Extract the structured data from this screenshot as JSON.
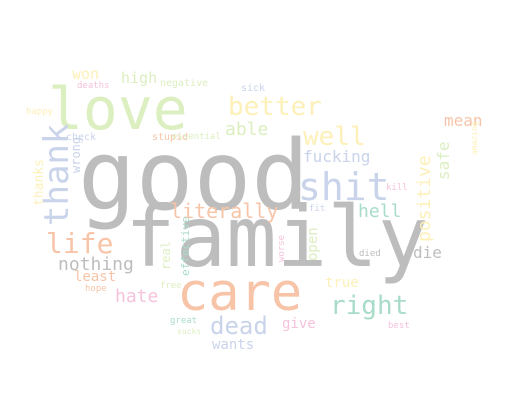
{
  "words": [
    {
      "text": "good",
      "color": "#bdbdbd"
    },
    {
      "text": "family",
      "color": "#bdbdbd"
    },
    {
      "text": "care",
      "color": "#f7c4a8"
    },
    {
      "text": "love",
      "color": "#dcefc0"
    },
    {
      "text": "shit",
      "color": "#c9d3ea"
    },
    {
      "text": "better",
      "color": "#fdf0b8"
    },
    {
      "text": "well",
      "color": "#fdf0b8"
    },
    {
      "text": "thank",
      "color": "#c9d3ea"
    },
    {
      "text": "life",
      "color": "#f7c4a8"
    },
    {
      "text": "literally",
      "color": "#f7c4a8"
    },
    {
      "text": "right",
      "color": "#a8dcc8"
    },
    {
      "text": "dead",
      "color": "#c9d3ea"
    },
    {
      "text": "able",
      "color": "#dcefc0"
    },
    {
      "text": "hell",
      "color": "#a8dcc8"
    },
    {
      "text": "nothing",
      "color": "#bdbdbd"
    },
    {
      "text": "hate",
      "color": "#f6c2dc"
    },
    {
      "text": "positive",
      "color": "#fdf0b8"
    },
    {
      "text": "safe",
      "color": "#dcefc0"
    },
    {
      "text": "fucking",
      "color": "#c9d3ea"
    },
    {
      "text": "mean",
      "color": "#f7c4a8"
    },
    {
      "text": "die",
      "color": "#bdbdbd"
    },
    {
      "text": "high",
      "color": "#dcefc0"
    },
    {
      "text": "won",
      "color": "#fdf0b8"
    },
    {
      "text": "least",
      "color": "#f7c4a8"
    },
    {
      "text": "give",
      "color": "#f6c2dc"
    },
    {
      "text": "open",
      "color": "#dcefc0"
    },
    {
      "text": "true",
      "color": "#fdf0b8"
    },
    {
      "text": "wants",
      "color": "#c9d3ea"
    },
    {
      "text": "thanks",
      "color": "#fdf0b8"
    },
    {
      "text": "wrong",
      "color": "#c9d3ea"
    },
    {
      "text": "real",
      "color": "#dcefc0"
    },
    {
      "text": "effective",
      "color": "#a8dcc8"
    },
    {
      "text": "negative",
      "color": "#dcefc0"
    },
    {
      "text": "sick",
      "color": "#c9d3ea"
    },
    {
      "text": "stupid",
      "color": "#f7c4a8"
    },
    {
      "text": "essential",
      "color": "#dcefc0"
    },
    {
      "text": "check",
      "color": "#c9d3ea"
    },
    {
      "text": "happy",
      "color": "#fdf0b8"
    },
    {
      "text": "deaths",
      "color": "#f6c2dc"
    },
    {
      "text": "kill",
      "color": "#f6c2dc"
    },
    {
      "text": "amazing",
      "color": "#fdf0b8"
    },
    {
      "text": "fit",
      "color": "#c9d3ea"
    },
    {
      "text": "free",
      "color": "#dcefc0"
    },
    {
      "text": "hope",
      "color": "#f7c4a8"
    },
    {
      "text": "worse",
      "color": "#f6c2dc"
    },
    {
      "text": "died",
      "color": "#bdbdbd"
    },
    {
      "text": "great",
      "color": "#a8dcc8"
    },
    {
      "text": "sucks",
      "color": "#dcefc0"
    },
    {
      "text": "best",
      "color": "#f6c2dc"
    }
  ]
}
